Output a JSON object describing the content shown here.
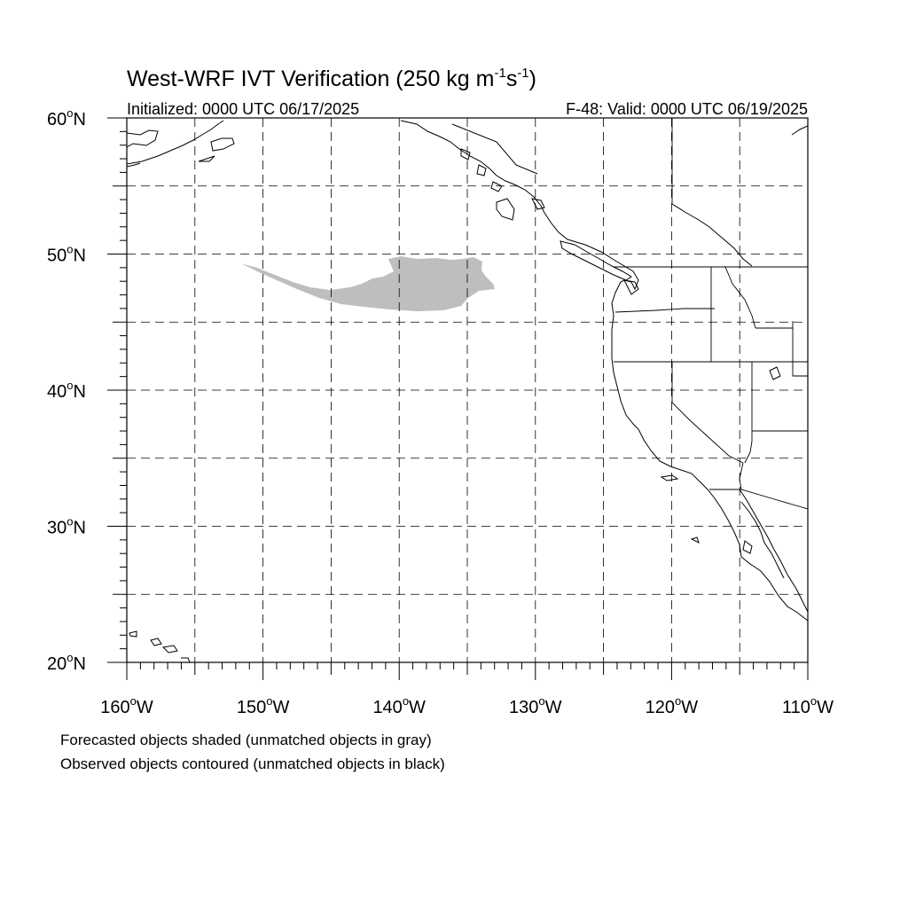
{
  "title": {
    "main": "West-WRF IVT Verification (250 kg m",
    "exp1": "-1",
    "mid": "s",
    "exp2": "-1",
    "close": ")"
  },
  "subtitle_left": "Initialized: 0000 UTC 06/17/2025",
  "subtitle_right": "F-48: Valid: 0000 UTC 06/19/2025",
  "map": {
    "lon_range": [
      -160,
      -110
    ],
    "lat_range": [
      20,
      60
    ],
    "lon_labels": [
      {
        "lon": -160,
        "num": "160",
        "hemi": "W"
      },
      {
        "lon": -150,
        "num": "150",
        "hemi": "W"
      },
      {
        "lon": -140,
        "num": "140",
        "hemi": "W"
      },
      {
        "lon": -130,
        "num": "130",
        "hemi": "W"
      },
      {
        "lon": -120,
        "num": "120",
        "hemi": "W"
      },
      {
        "lon": -110,
        "num": "110",
        "hemi": "W"
      }
    ],
    "lat_labels": [
      {
        "lat": 60,
        "num": "60",
        "hemi": "N"
      },
      {
        "lat": 50,
        "num": "50",
        "hemi": "N"
      },
      {
        "lat": 40,
        "num": "40",
        "hemi": "N"
      },
      {
        "lat": 30,
        "num": "30",
        "hemi": "N"
      },
      {
        "lat": 20,
        "num": "20",
        "hemi": "N"
      }
    ],
    "gridline_spacing_deg": 5,
    "forecast_object_color": "#bebebe",
    "coast_color": "#000000"
  },
  "notes": [
    "Forecasted objects shaded (unmatched objects in gray)",
    "Observed objects contoured (unmatched objects in black)"
  ]
}
